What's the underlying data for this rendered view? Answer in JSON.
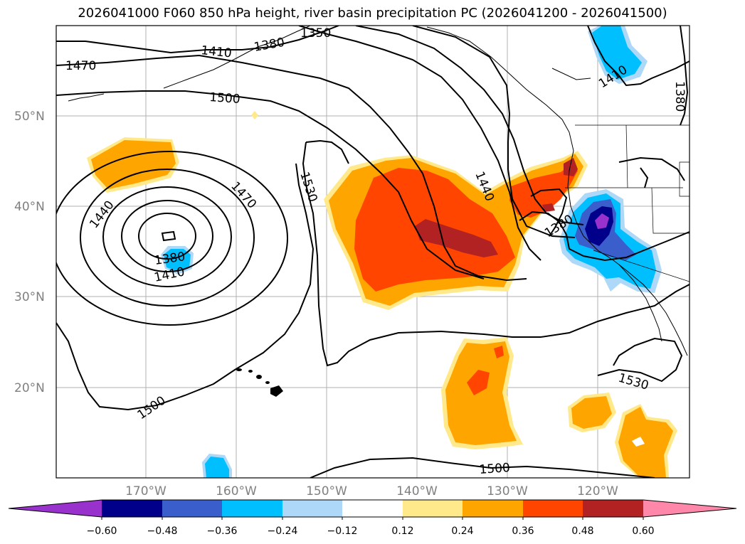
{
  "title": "2026041000 F060 850 hPa height, river basin precipitation PC (2026041200 - 2026041500)",
  "latitude_labels": [
    "50°N",
    "40°N",
    "30°N",
    "20°N"
  ],
  "longitude_labels": [
    "170°W",
    "160°W",
    "150°W",
    "140°W",
    "130°W",
    "120°W"
  ],
  "contour_labels": [
    "1350",
    "1380",
    "1410",
    "1470",
    "1500",
    "1440",
    "1470",
    "1530",
    "1440",
    "1380",
    "1380",
    "1410",
    "1410",
    "1380",
    "1500",
    "1530",
    "1500"
  ],
  "colorbar": {
    "ticks": [
      "−0.60",
      "−0.48",
      "−0.36",
      "−0.24",
      "−0.12",
      "0.12",
      "0.24",
      "0.36",
      "0.48",
      "0.60"
    ],
    "colors": [
      "#9932cc",
      "#00008b",
      "#3a5fcd",
      "#00bfff",
      "#add8f7",
      "#ffffff",
      "#ffe98a",
      "#ffa500",
      "#ff4500",
      "#b22222",
      "#ff88aa"
    ]
  },
  "shading_colors": {
    "light_orange": "#ffe98a",
    "orange": "#ffa500",
    "red_orange": "#ff4500",
    "dark_red": "#b22222",
    "light_blue": "#add8f7",
    "cyan": "#00bfff",
    "royal_blue": "#3a5fcd",
    "navy": "#00008b",
    "purple": "#9932cc"
  }
}
